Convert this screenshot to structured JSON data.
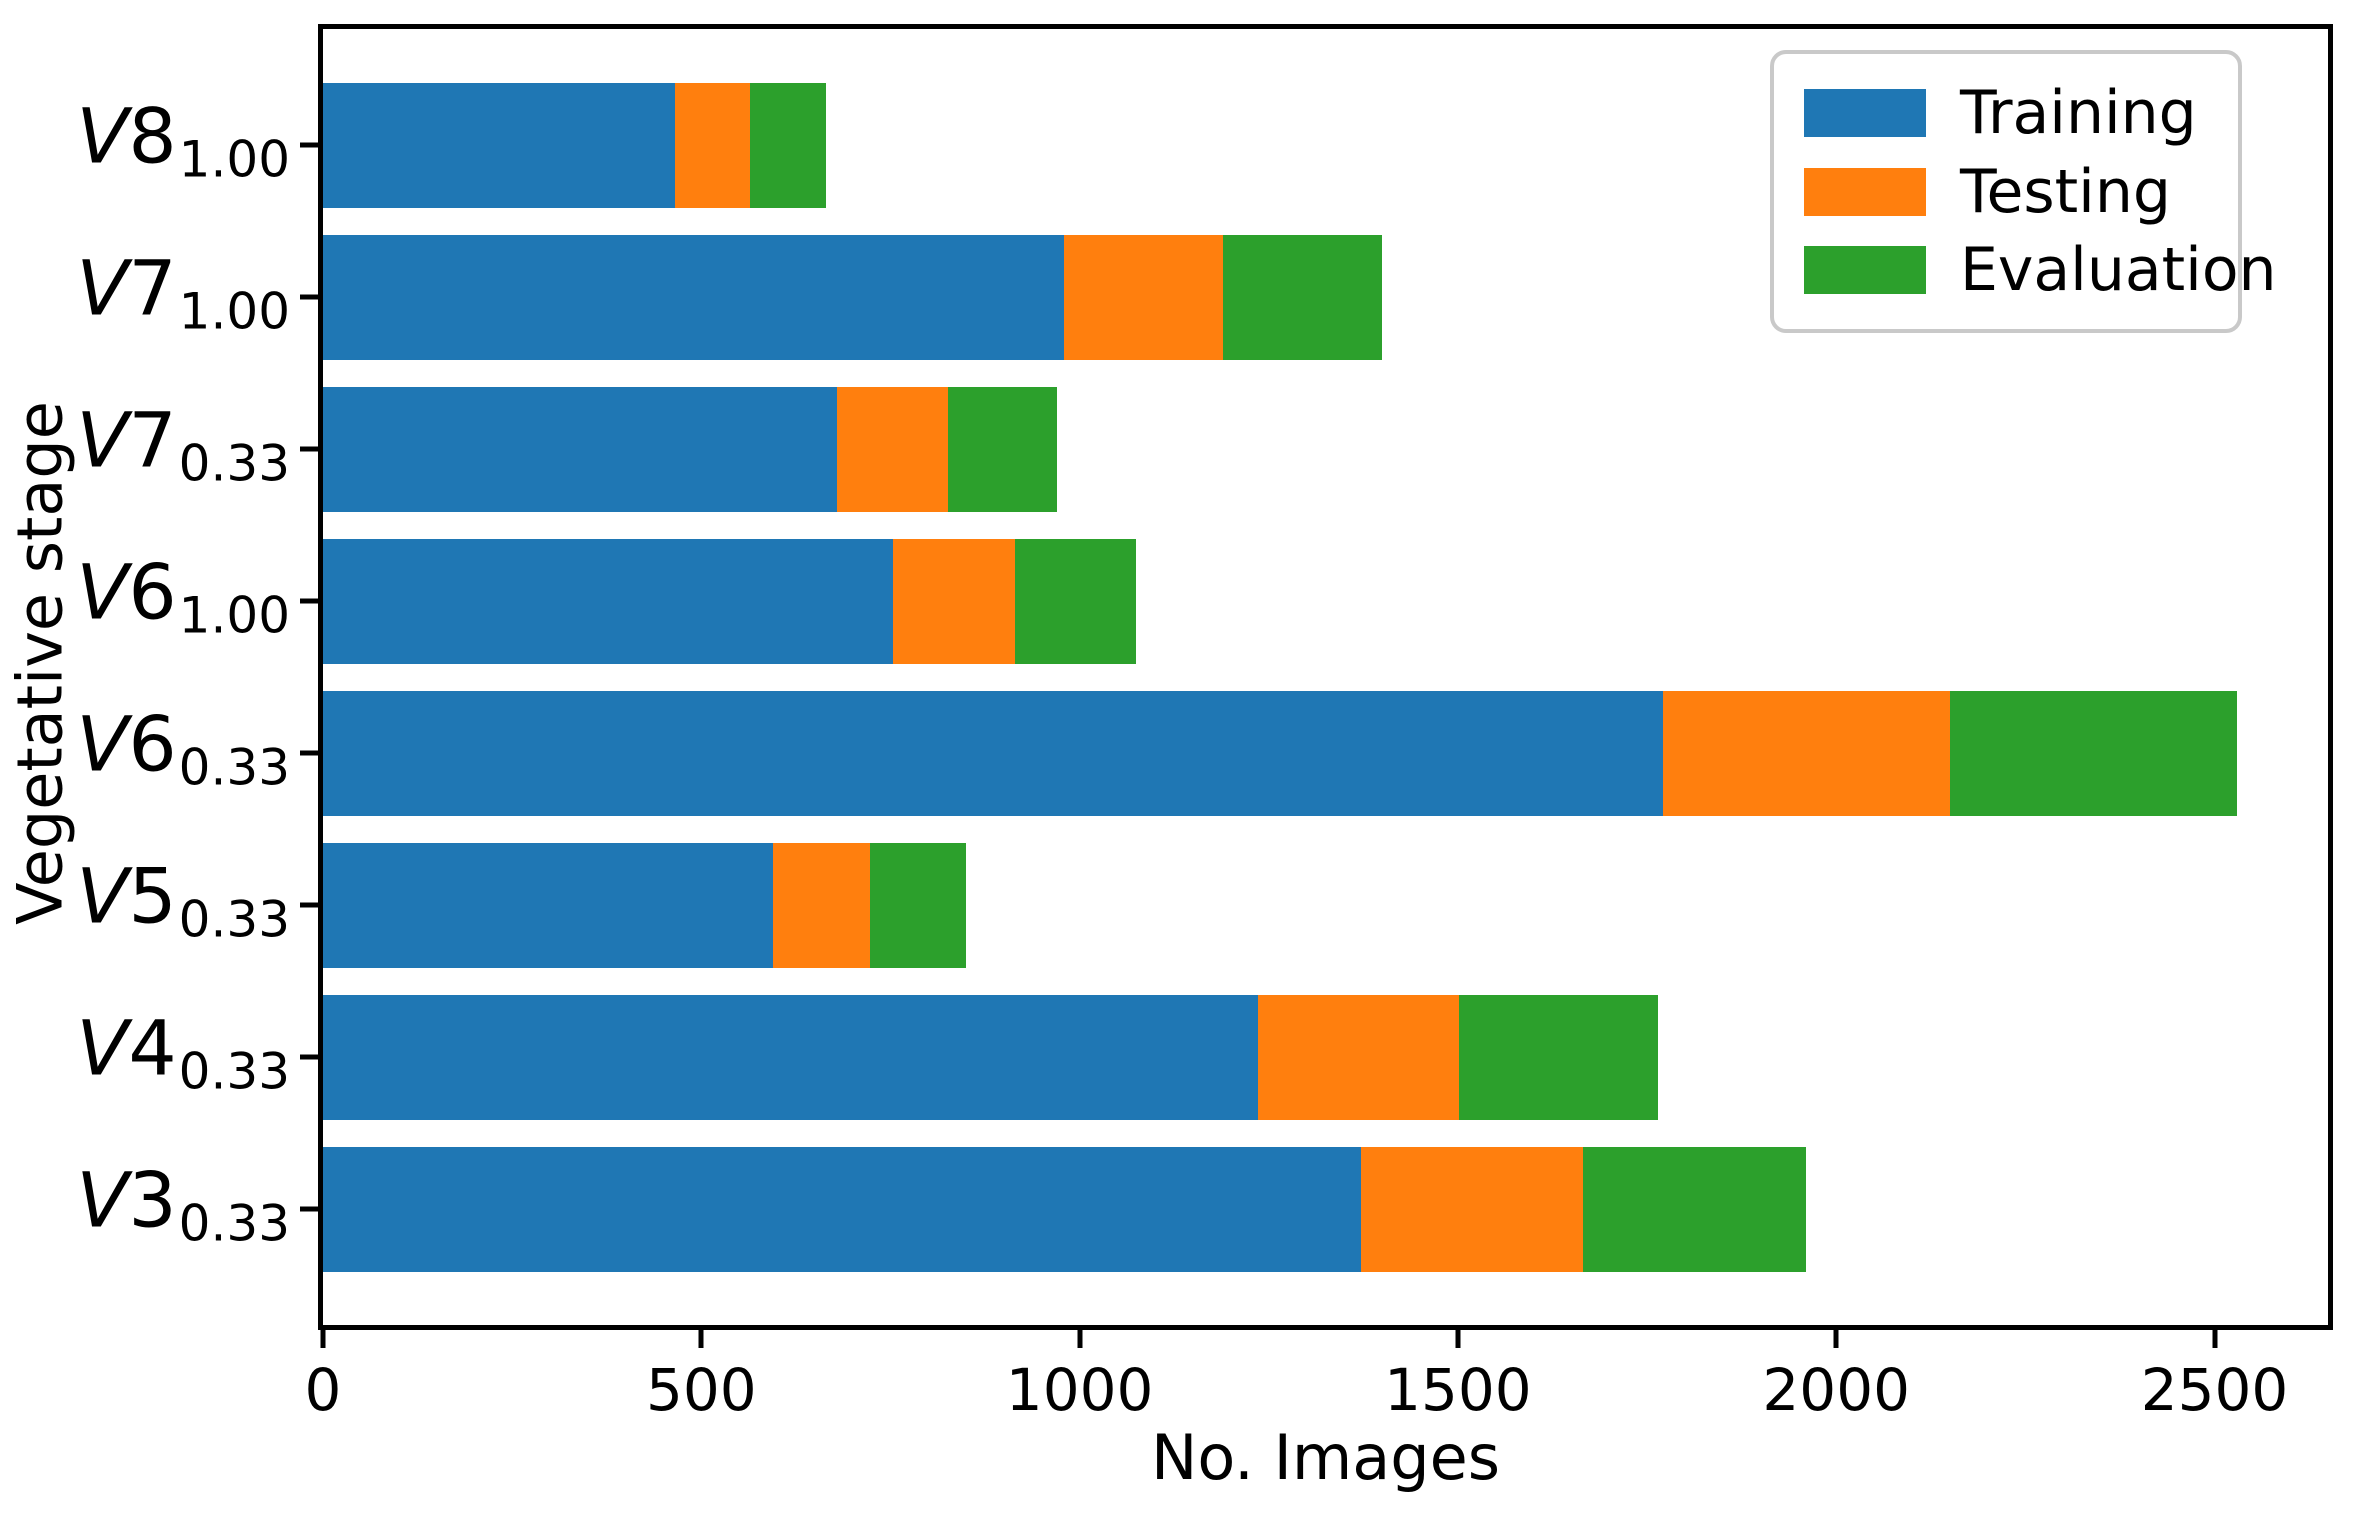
{
  "chart_data": {
    "type": "bar",
    "orientation": "horizontal",
    "stacked": true,
    "title": "",
    "xlabel": "No. Images",
    "ylabel": "Vegetative stage",
    "xlim": [
      0,
      2650
    ],
    "xticks": [
      "0",
      "500",
      "1000",
      "1500",
      "2000",
      "2500"
    ],
    "xtick_values": [
      0,
      500,
      1000,
      1500,
      2000,
      2500
    ],
    "grid": false,
    "legend_position": "upper right",
    "categories": [
      {
        "letter": "V",
        "num": "8",
        "sub": "1.00"
      },
      {
        "letter": "V",
        "num": "7",
        "sub": "1.00"
      },
      {
        "letter": "V",
        "num": "7",
        "sub": "0.33"
      },
      {
        "letter": "V",
        "num": "6",
        "sub": "1.00"
      },
      {
        "letter": "V",
        "num": "6",
        "sub": "0.33"
      },
      {
        "letter": "V",
        "num": "5",
        "sub": "0.33"
      },
      {
        "letter": "V",
        "num": "4",
        "sub": "0.33"
      },
      {
        "letter": "V",
        "num": "3",
        "sub": "0.33"
      }
    ],
    "series": [
      {
        "name": "Training",
        "color": "#1f77b4",
        "values": [
          465,
          980,
          680,
          753,
          1771,
          595,
          1236,
          1372
        ]
      },
      {
        "name": "Testing",
        "color": "#ff7f0e",
        "values": [
          100,
          210,
          146,
          161,
          380,
          128,
          265,
          294
        ]
      },
      {
        "name": "Evaluation",
        "color": "#2ca02c",
        "values": [
          100,
          210,
          144,
          161,
          379,
          127,
          264,
          294
        ]
      }
    ],
    "totals": [
      665,
      1400,
      970,
      1075,
      2530,
      850,
      1765,
      1960
    ],
    "colors": {
      "spine": "#000000",
      "background": "#ffffff",
      "legend_border": "#c9c9c9"
    }
  }
}
